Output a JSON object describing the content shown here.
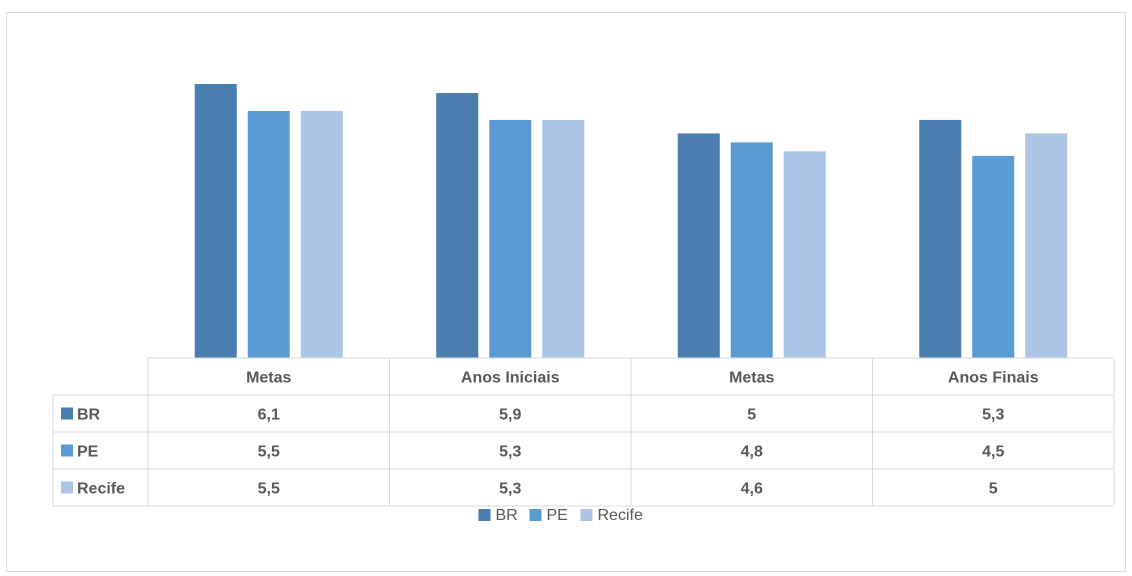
{
  "chart_data": {
    "type": "bar",
    "categories": [
      "Metas",
      "Anos Iniciais",
      "Metas",
      "Anos Finais"
    ],
    "series": [
      {
        "name": "BR",
        "color": "#4a7eae",
        "values": [
          "6,1",
          "5,9",
          "5",
          "5,3"
        ]
      },
      {
        "name": "PE",
        "color": "#5b9bd5",
        "values": [
          "5,5",
          "5,3",
          "4,8",
          "4,5"
        ]
      },
      {
        "name": "Recife",
        "color": "#adc5e5",
        "values": [
          "5,5",
          "5,3",
          "4,6",
          "5"
        ]
      }
    ],
    "ylim": [
      0,
      7
    ],
    "grid": false,
    "legend": "bottom",
    "data_table": true
  }
}
